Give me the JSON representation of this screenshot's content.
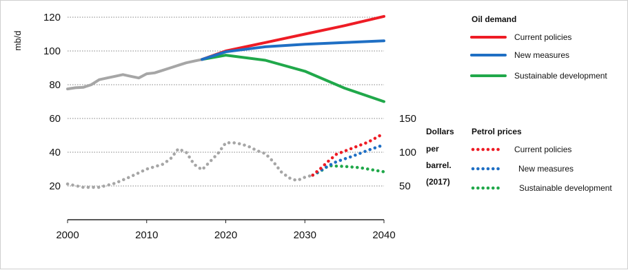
{
  "chart_data": {
    "type": "line",
    "ylabel": "mb/d",
    "y_ticks": [
      "120",
      "100",
      "80",
      "60",
      "40",
      "20"
    ],
    "x_ticks": [
      "2000",
      "2010",
      "2020",
      "2030",
      "2040"
    ],
    "xlim": [
      2000,
      2040
    ],
    "ylim": [
      0,
      120
    ],
    "grid": "horizontal dotted",
    "right_axis": {
      "ticks": [
        "150",
        "100",
        "50"
      ],
      "label_lines": [
        "Dollars",
        "per",
        "barrel.",
        "(2017)"
      ],
      "range": [
        50,
        150
      ]
    },
    "oil_demand": {
      "legend_title": "Oil demand",
      "history": {
        "color": "#a6a6a6",
        "points": [
          [
            2000,
            77.5
          ],
          [
            2001,
            78.2
          ],
          [
            2002,
            78.5
          ],
          [
            2003,
            80
          ],
          [
            2004,
            83
          ],
          [
            2005,
            84
          ],
          [
            2006,
            85
          ],
          [
            2007,
            86
          ],
          [
            2008,
            85
          ],
          [
            2009,
            84
          ],
          [
            2010,
            86.5
          ],
          [
            2011,
            87
          ],
          [
            2012,
            88.5
          ],
          [
            2013,
            90
          ],
          [
            2014,
            91.5
          ],
          [
            2015,
            93
          ],
          [
            2016,
            94
          ],
          [
            2017,
            95
          ]
        ]
      },
      "series": [
        {
          "name": "Current policies",
          "color": "#ee1c25",
          "points": [
            [
              2017,
              95
            ],
            [
              2020,
              100
            ],
            [
              2025,
              105
            ],
            [
              2030,
              110
            ],
            [
              2035,
              115
            ],
            [
              2040,
              120.5
            ]
          ]
        },
        {
          "name": "New measures",
          "color": "#1f6fc4",
          "points": [
            [
              2017,
              95
            ],
            [
              2020,
              99.5
            ],
            [
              2025,
              102.5
            ],
            [
              2030,
              104
            ],
            [
              2035,
              105
            ],
            [
              2040,
              106
            ]
          ]
        },
        {
          "name": "Sustainable development",
          "color": "#20a84a",
          "points": [
            [
              2017,
              95
            ],
            [
              2020,
              97.5
            ],
            [
              2025,
              94.5
            ],
            [
              2030,
              88
            ],
            [
              2035,
              78
            ],
            [
              2040,
              70
            ]
          ]
        }
      ]
    },
    "petrol_prices": {
      "legend_title": "Petrol prices",
      "history": {
        "color": "#a6a6a6",
        "points": [
          [
            2000,
            53
          ],
          [
            2002,
            48
          ],
          [
            2004,
            48
          ],
          [
            2006,
            54
          ],
          [
            2008,
            64
          ],
          [
            2010,
            75
          ],
          [
            2012,
            82
          ],
          [
            2013,
            90
          ],
          [
            2014,
            105
          ],
          [
            2015,
            100
          ],
          [
            2016,
            82
          ],
          [
            2017,
            74
          ],
          [
            2018,
            86
          ],
          [
            2019,
            98
          ],
          [
            2020,
            114
          ],
          [
            2021,
            114
          ],
          [
            2022,
            112
          ],
          [
            2023,
            108
          ],
          [
            2024,
            102
          ],
          [
            2025,
            98
          ],
          [
            2026,
            86
          ],
          [
            2027,
            71
          ],
          [
            2028,
            62
          ],
          [
            2029,
            58
          ],
          [
            2030,
            63
          ],
          [
            2031,
            66
          ]
        ]
      },
      "series": [
        {
          "name": "Current policies",
          "color": "#ee1c25",
          "points": [
            [
              2031,
              66
            ],
            [
              2032,
              76
            ],
            [
              2033,
              87
            ],
            [
              2034,
              97
            ],
            [
              2036,
              106
            ],
            [
              2038,
              115
            ],
            [
              2040,
              128
            ]
          ]
        },
        {
          "name": "New measures",
          "color": "#1f6fc4",
          "points": [
            [
              2031,
              66
            ],
            [
              2032,
              73
            ],
            [
              2033,
              80
            ],
            [
              2034,
              86
            ],
            [
              2036,
              94
            ],
            [
              2038,
              103
            ],
            [
              2040,
              111
            ]
          ]
        },
        {
          "name": "Sustainable development",
          "color": "#20a84a",
          "points": [
            [
              2031,
              66
            ],
            [
              2032,
              72
            ],
            [
              2033,
              80
            ],
            [
              2035,
              79
            ],
            [
              2037,
              77
            ],
            [
              2039,
              73
            ],
            [
              2040,
              71
            ]
          ]
        }
      ]
    }
  }
}
